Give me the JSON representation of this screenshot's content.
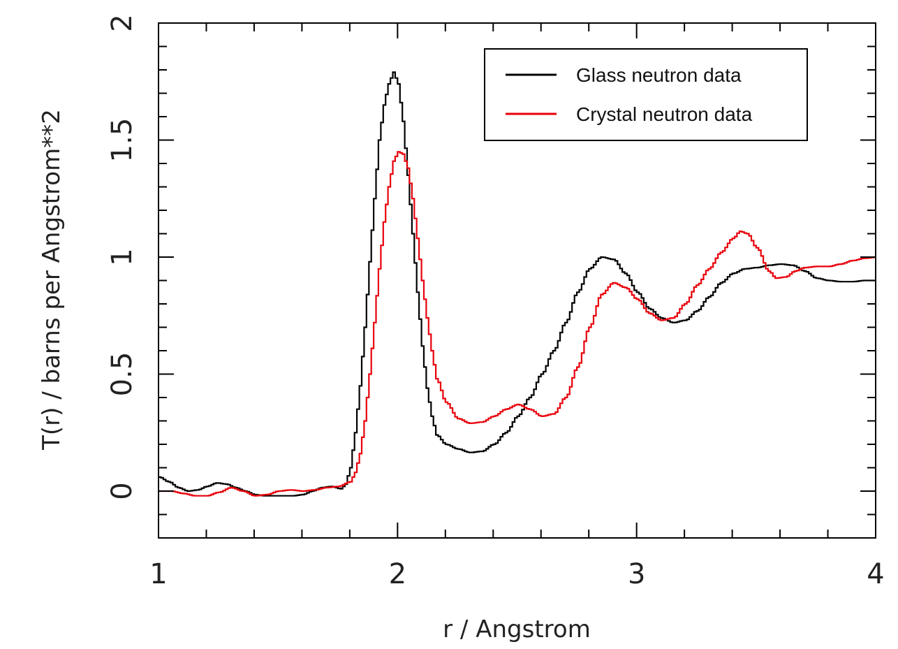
{
  "chart_data": {
    "type": "line",
    "step": true,
    "title": "",
    "xlabel": "r / Angstrom",
    "ylabel": "T(r) / barns per Angstrom**2",
    "xlim": [
      1,
      4
    ],
    "ylim": [
      -0.2,
      2
    ],
    "x_ticks": [
      1,
      2,
      3,
      4
    ],
    "x_tick_labels": [
      "1",
      "2",
      "3",
      "4"
    ],
    "x_minor_step": 0.2,
    "y_ticks": [
      0,
      0.5,
      1,
      1.5,
      2
    ],
    "y_tick_labels": [
      "0",
      "0.5",
      "1",
      "1.5",
      "2"
    ],
    "y_minor_step": 0.1,
    "grid": false,
    "legend_position": "top-right",
    "series": [
      {
        "name": "Glass neutron data",
        "color": "#000000",
        "points": [
          [
            1.0,
            0.06
          ],
          [
            1.04,
            0.04
          ],
          [
            1.08,
            0.015
          ],
          [
            1.12,
            0.0
          ],
          [
            1.16,
            0.005
          ],
          [
            1.2,
            0.02
          ],
          [
            1.24,
            0.035
          ],
          [
            1.28,
            0.03
          ],
          [
            1.32,
            0.015
          ],
          [
            1.36,
            0.0
          ],
          [
            1.4,
            -0.015
          ],
          [
            1.44,
            -0.02
          ],
          [
            1.48,
            -0.02
          ],
          [
            1.52,
            -0.02
          ],
          [
            1.56,
            -0.02
          ],
          [
            1.6,
            -0.015
          ],
          [
            1.64,
            0.0
          ],
          [
            1.68,
            0.015
          ],
          [
            1.72,
            0.02
          ],
          [
            1.76,
            0.01
          ],
          [
            1.78,
            0.03
          ],
          [
            1.8,
            0.1
          ],
          [
            1.82,
            0.25
          ],
          [
            1.84,
            0.45
          ],
          [
            1.86,
            0.7
          ],
          [
            1.88,
            0.98
          ],
          [
            1.9,
            1.25
          ],
          [
            1.92,
            1.5
          ],
          [
            1.94,
            1.65
          ],
          [
            1.96,
            1.74
          ],
          [
            1.98,
            1.79
          ],
          [
            2.0,
            1.74
          ],
          [
            2.02,
            1.58
          ],
          [
            2.04,
            1.35
          ],
          [
            2.06,
            1.1
          ],
          [
            2.08,
            0.85
          ],
          [
            2.1,
            0.62
          ],
          [
            2.12,
            0.44
          ],
          [
            2.14,
            0.32
          ],
          [
            2.16,
            0.24
          ],
          [
            2.2,
            0.2
          ],
          [
            2.25,
            0.18
          ],
          [
            2.3,
            0.165
          ],
          [
            2.35,
            0.17
          ],
          [
            2.4,
            0.2
          ],
          [
            2.45,
            0.25
          ],
          [
            2.5,
            0.32
          ],
          [
            2.55,
            0.4
          ],
          [
            2.6,
            0.5
          ],
          [
            2.65,
            0.6
          ],
          [
            2.7,
            0.72
          ],
          [
            2.75,
            0.85
          ],
          [
            2.8,
            0.95
          ],
          [
            2.85,
            1.0
          ],
          [
            2.9,
            0.99
          ],
          [
            2.95,
            0.93
          ],
          [
            3.0,
            0.85
          ],
          [
            3.05,
            0.78
          ],
          [
            3.1,
            0.74
          ],
          [
            3.15,
            0.72
          ],
          [
            3.2,
            0.73
          ],
          [
            3.25,
            0.77
          ],
          [
            3.3,
            0.83
          ],
          [
            3.35,
            0.89
          ],
          [
            3.4,
            0.93
          ],
          [
            3.45,
            0.95
          ],
          [
            3.5,
            0.955
          ],
          [
            3.55,
            0.965
          ],
          [
            3.6,
            0.97
          ],
          [
            3.65,
            0.965
          ],
          [
            3.7,
            0.94
          ],
          [
            3.75,
            0.91
          ],
          [
            3.8,
            0.9
          ],
          [
            3.85,
            0.895
          ],
          [
            3.9,
            0.895
          ],
          [
            3.95,
            0.9
          ],
          [
            4.0,
            0.9
          ]
        ]
      },
      {
        "name": "Crystal neutron data",
        "color": "#e8000b",
        "points": [
          [
            1.0,
            0.0
          ],
          [
            1.05,
            0.0
          ],
          [
            1.1,
            -0.01
          ],
          [
            1.15,
            -0.02
          ],
          [
            1.2,
            -0.02
          ],
          [
            1.25,
            -0.005
          ],
          [
            1.3,
            0.015
          ],
          [
            1.35,
            0.0
          ],
          [
            1.4,
            -0.02
          ],
          [
            1.45,
            -0.015
          ],
          [
            1.5,
            0.0
          ],
          [
            1.55,
            0.005
          ],
          [
            1.6,
            0.0
          ],
          [
            1.65,
            0.005
          ],
          [
            1.7,
            0.015
          ],
          [
            1.75,
            0.02
          ],
          [
            1.8,
            0.04
          ],
          [
            1.82,
            0.08
          ],
          [
            1.84,
            0.16
          ],
          [
            1.86,
            0.3
          ],
          [
            1.88,
            0.5
          ],
          [
            1.9,
            0.72
          ],
          [
            1.92,
            0.95
          ],
          [
            1.94,
            1.15
          ],
          [
            1.96,
            1.3
          ],
          [
            1.98,
            1.41
          ],
          [
            2.0,
            1.45
          ],
          [
            2.02,
            1.44
          ],
          [
            2.04,
            1.38
          ],
          [
            2.06,
            1.25
          ],
          [
            2.08,
            1.08
          ],
          [
            2.1,
            0.9
          ],
          [
            2.12,
            0.74
          ],
          [
            2.14,
            0.6
          ],
          [
            2.16,
            0.48
          ],
          [
            2.2,
            0.38
          ],
          [
            2.25,
            0.31
          ],
          [
            2.3,
            0.29
          ],
          [
            2.35,
            0.295
          ],
          [
            2.4,
            0.32
          ],
          [
            2.45,
            0.35
          ],
          [
            2.5,
            0.37
          ],
          [
            2.55,
            0.35
          ],
          [
            2.6,
            0.32
          ],
          [
            2.65,
            0.33
          ],
          [
            2.7,
            0.4
          ],
          [
            2.75,
            0.53
          ],
          [
            2.8,
            0.7
          ],
          [
            2.85,
            0.84
          ],
          [
            2.9,
            0.89
          ],
          [
            2.95,
            0.87
          ],
          [
            3.0,
            0.82
          ],
          [
            3.05,
            0.76
          ],
          [
            3.1,
            0.73
          ],
          [
            3.15,
            0.74
          ],
          [
            3.2,
            0.8
          ],
          [
            3.25,
            0.88
          ],
          [
            3.3,
            0.95
          ],
          [
            3.35,
            1.02
          ],
          [
            3.4,
            1.08
          ],
          [
            3.43,
            1.11
          ],
          [
            3.46,
            1.1
          ],
          [
            3.5,
            1.04
          ],
          [
            3.55,
            0.94
          ],
          [
            3.58,
            0.91
          ],
          [
            3.62,
            0.915
          ],
          [
            3.66,
            0.94
          ],
          [
            3.7,
            0.955
          ],
          [
            3.75,
            0.96
          ],
          [
            3.8,
            0.96
          ],
          [
            3.85,
            0.97
          ],
          [
            3.9,
            0.985
          ],
          [
            3.95,
            0.995
          ],
          [
            4.0,
            1.0
          ]
        ]
      }
    ]
  }
}
